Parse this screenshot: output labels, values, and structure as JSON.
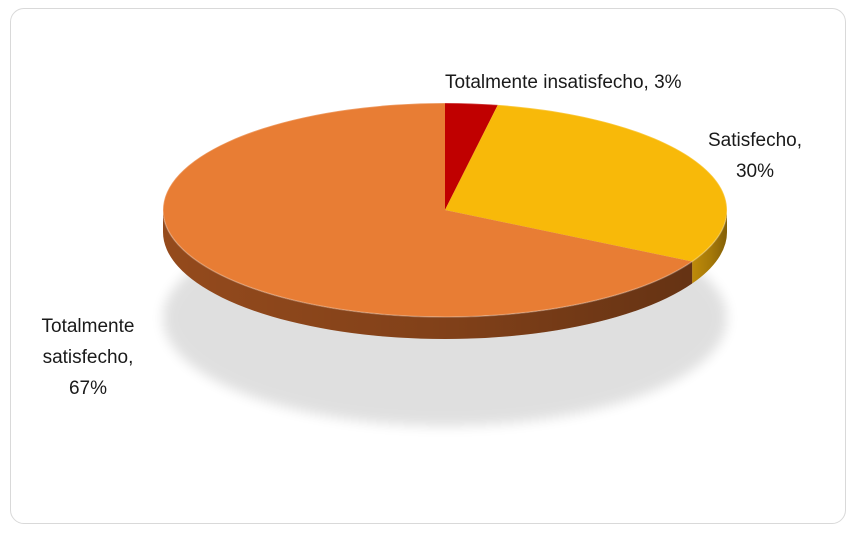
{
  "chart_data": {
    "type": "pie",
    "style": "3d",
    "categories": [
      "Totalmente insatisfecho",
      "Satisfecho",
      "Totalmente satisfecho"
    ],
    "values": [
      3,
      30,
      67
    ],
    "labels": [
      {
        "lines": [
          "Totalmente insatisfecho, 3%"
        ]
      },
      {
        "lines": [
          "Satisfecho,",
          "30%"
        ]
      },
      {
        "lines": [
          "Totalmente",
          "satisfecho,",
          "67%"
        ]
      }
    ],
    "colors": [
      "#c00000",
      "#f8b909",
      "#e87d34"
    ],
    "side_colors": [
      "#8a0000",
      "#c9920a",
      "#9c4e1e"
    ],
    "legend": "none"
  }
}
